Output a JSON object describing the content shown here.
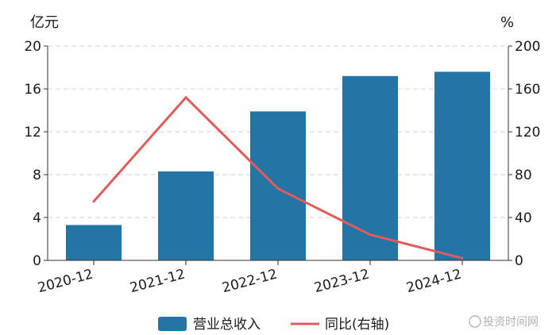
{
  "chart_data": {
    "type": "bar",
    "categories": [
      "2020-12",
      "2021-12",
      "2022-12",
      "2023-12",
      "2024-12"
    ],
    "series": [
      {
        "name": "营业总收入",
        "type": "bar",
        "axis": "left",
        "color": "#2474a4",
        "values": [
          3.3,
          8.3,
          13.9,
          17.2,
          17.6
        ]
      },
      {
        "name": "同比(右轴)",
        "type": "line",
        "axis": "right",
        "color": "#e05c5c",
        "values": [
          55,
          152,
          67,
          24,
          2
        ]
      }
    ],
    "left_axis": {
      "unit": "亿元",
      "ylim": [
        0,
        20
      ],
      "ticks": [
        "0",
        "4",
        "8",
        "12",
        "16",
        "20"
      ]
    },
    "right_axis": {
      "unit": "%",
      "ylim": [
        0,
        200
      ],
      "ticks": [
        "0",
        "40",
        "80",
        "120",
        "160",
        "200"
      ]
    },
    "grid": true,
    "legend_position": "bottom",
    "watermark": "投资时间网"
  }
}
